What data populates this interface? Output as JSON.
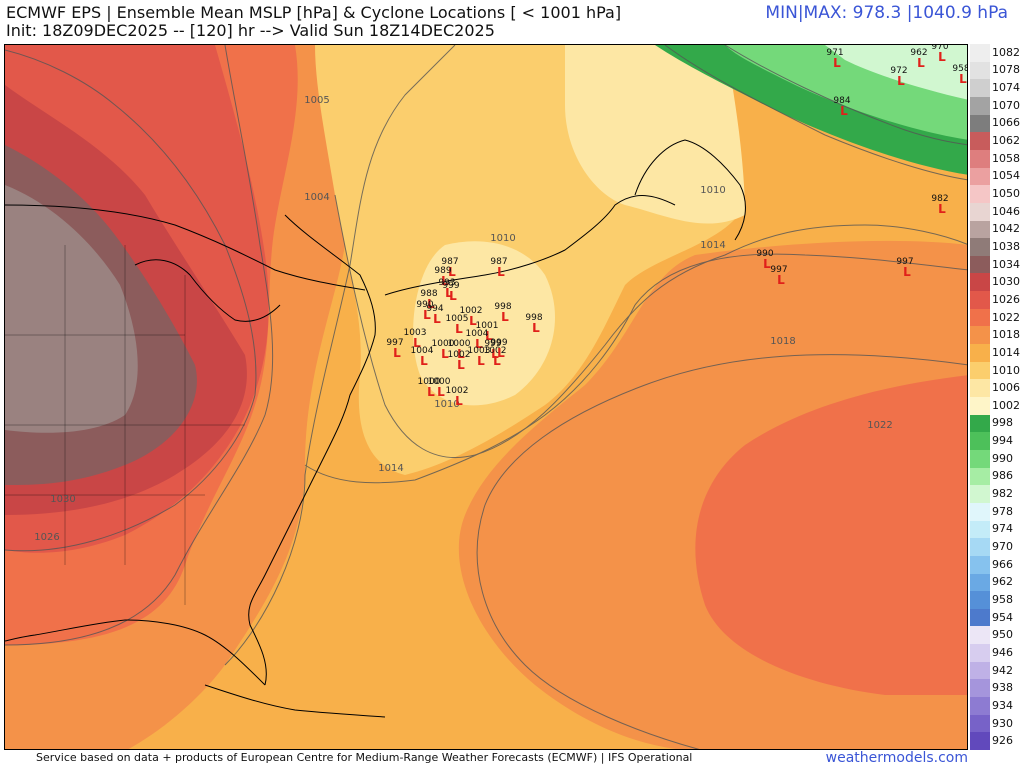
{
  "header": {
    "title": "ECMWF EPS | Ensemble Mean MSLP [hPa] & Cyclone Locations [ < 1001 hPa]",
    "subtitle": "Init: 18Z09DEC2025 -- [120] hr --> Valid Sun 18Z14DEC2025",
    "minmax": "MIN|MAX: 978.3 |1040.9 hPa"
  },
  "footer": {
    "credit": "Service based on data + products of European Centre for Medium-Range Weather Forecasts (ECMWF) | IFS Operational",
    "brand": "weathermodels.com"
  },
  "colorbar": [
    {
      "label": "1082",
      "color": "#eeeeee"
    },
    {
      "label": "1078",
      "color": "#e2e2e2"
    },
    {
      "label": "1074",
      "color": "#cfcfcf"
    },
    {
      "label": "1070",
      "color": "#a3a3a3"
    },
    {
      "label": "1066",
      "color": "#7d7d7d"
    },
    {
      "label": "1062",
      "color": "#c85c5c"
    },
    {
      "label": "1058",
      "color": "#de7e7e"
    },
    {
      "label": "1054",
      "color": "#eba0a0"
    },
    {
      "label": "1050",
      "color": "#f5c6c6"
    },
    {
      "label": "1046",
      "color": "#e8d5d2"
    },
    {
      "label": "1042",
      "color": "#b9a3a0"
    },
    {
      "label": "1038",
      "color": "#8f7b78"
    },
    {
      "label": "1034",
      "color": "#8c5c5c"
    },
    {
      "label": "1030",
      "color": "#c94646"
    },
    {
      "label": "1026",
      "color": "#e2584a"
    },
    {
      "label": "1022",
      "color": "#f0714a"
    },
    {
      "label": "1018",
      "color": "#f49249"
    },
    {
      "label": "1014",
      "color": "#f8b04a"
    },
    {
      "label": "1010",
      "color": "#fbce6d"
    },
    {
      "label": "1006",
      "color": "#fde7a4"
    },
    {
      "label": "1002",
      "color": "#fef5c8"
    },
    {
      "label": "998",
      "color": "#33a94a"
    },
    {
      "label": "994",
      "color": "#4dc05a"
    },
    {
      "label": "990",
      "color": "#74d97a"
    },
    {
      "label": "986",
      "color": "#a6eda4"
    },
    {
      "label": "982",
      "color": "#d1f7d0"
    },
    {
      "label": "978",
      "color": "#e0f6fb"
    },
    {
      "label": "974",
      "color": "#c4ecf8"
    },
    {
      "label": "970",
      "color": "#a6d9f4"
    },
    {
      "label": "966",
      "color": "#86c2ee"
    },
    {
      "label": "962",
      "color": "#6aa9e4"
    },
    {
      "label": "958",
      "color": "#5590d8"
    },
    {
      "label": "954",
      "color": "#4d7acc"
    },
    {
      "label": "950",
      "color": "#ece6f6"
    },
    {
      "label": "946",
      "color": "#d7cdef"
    },
    {
      "label": "942",
      "color": "#bfb1e6"
    },
    {
      "label": "938",
      "color": "#a595dc"
    },
    {
      "label": "934",
      "color": "#8d7bd2"
    },
    {
      "label": "930",
      "color": "#7762c8"
    },
    {
      "label": "926",
      "color": "#6149bc"
    }
  ],
  "contour_labels": [
    {
      "text": "1005"
    },
    {
      "text": "1004"
    },
    {
      "text": "1010"
    },
    {
      "text": "1010"
    },
    {
      "text": "1014"
    },
    {
      "text": "1018"
    },
    {
      "text": "1010"
    },
    {
      "text": "1014"
    },
    {
      "text": "1022"
    },
    {
      "text": "1030"
    },
    {
      "text": "1026"
    }
  ],
  "cyclone_points": [
    {
      "p": "971"
    },
    {
      "p": "962"
    },
    {
      "p": "970"
    },
    {
      "p": "972"
    },
    {
      "p": "958"
    },
    {
      "p": "984"
    },
    {
      "p": "982"
    },
    {
      "p": "990"
    },
    {
      "p": "997"
    },
    {
      "p": "997"
    },
    {
      "p": "987"
    },
    {
      "p": "989"
    },
    {
      "p": "993"
    },
    {
      "p": "999"
    },
    {
      "p": "987"
    },
    {
      "p": "988"
    },
    {
      "p": "990"
    },
    {
      "p": "994"
    },
    {
      "p": "1002"
    },
    {
      "p": "998"
    },
    {
      "p": "998"
    },
    {
      "p": "1005"
    },
    {
      "p": "1001"
    },
    {
      "p": "1003"
    },
    {
      "p": "1004"
    },
    {
      "p": "997"
    },
    {
      "p": "1004"
    },
    {
      "p": "1000"
    },
    {
      "p": "1000"
    },
    {
      "p": "999"
    },
    {
      "p": "1002"
    },
    {
      "p": "1003"
    },
    {
      "p": "1002"
    },
    {
      "p": "999"
    },
    {
      "p": "1000"
    },
    {
      "p": "1000"
    },
    {
      "p": "1002"
    }
  ],
  "cyclone_marker": "L"
}
